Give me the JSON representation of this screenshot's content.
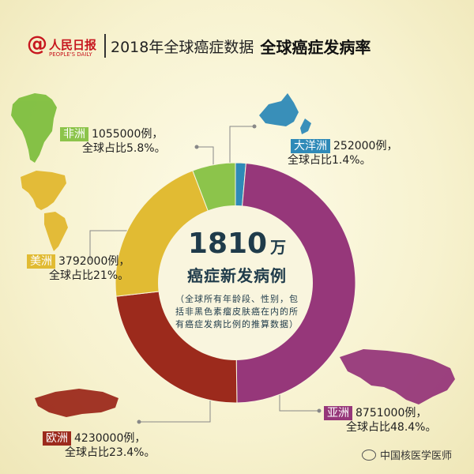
{
  "header": {
    "logo_at": "@",
    "logo_name": "人民日报",
    "logo_en": "PEOPLE'S DAILY",
    "title": "2018年全球癌症数据",
    "title_strong": "全球癌症发病率"
  },
  "center": {
    "total_value": "1810",
    "total_unit": "万",
    "subtitle": "癌症新发病例",
    "note": "（全球所有年龄段、性别，包括非黑色素瘤皮肤癌在内的所有癌症发病比例的推算数据）"
  },
  "labels": {
    "africa": {
      "name": "非洲",
      "cases": "1055000例，",
      "share": "全球占比5.8%。"
    },
    "oceania": {
      "name": "大洋洲",
      "cases": "252000例，",
      "share": "全球占比1.4%。"
    },
    "america": {
      "name": "美洲",
      "cases": "3792000例，",
      "share": "全球占比21%。"
    },
    "asia": {
      "name": "亚洲",
      "cases": "8751000例，",
      "share": "全球占比48.4%。"
    },
    "europe": {
      "name": "欧洲",
      "cases": "4230000例，",
      "share": "全球占比23.4%。"
    }
  },
  "watermark": "中国核医学医师",
  "chart_data": {
    "type": "pie",
    "total": 18100000,
    "slices": [
      {
        "name": "大洋洲",
        "value": 252000,
        "percent": 1.4,
        "color": "#2f8ab8"
      },
      {
        "name": "亚洲",
        "value": 8751000,
        "percent": 48.4,
        "color": "#96377a"
      },
      {
        "name": "欧洲",
        "value": 4230000,
        "percent": 23.4,
        "color": "#9c2a1c"
      },
      {
        "name": "美洲",
        "value": 3792000,
        "percent": 21,
        "color": "#e1bb33"
      },
      {
        "name": "非洲",
        "value": 1055000,
        "percent": 5.8,
        "color": "#8cc44b"
      }
    ]
  }
}
